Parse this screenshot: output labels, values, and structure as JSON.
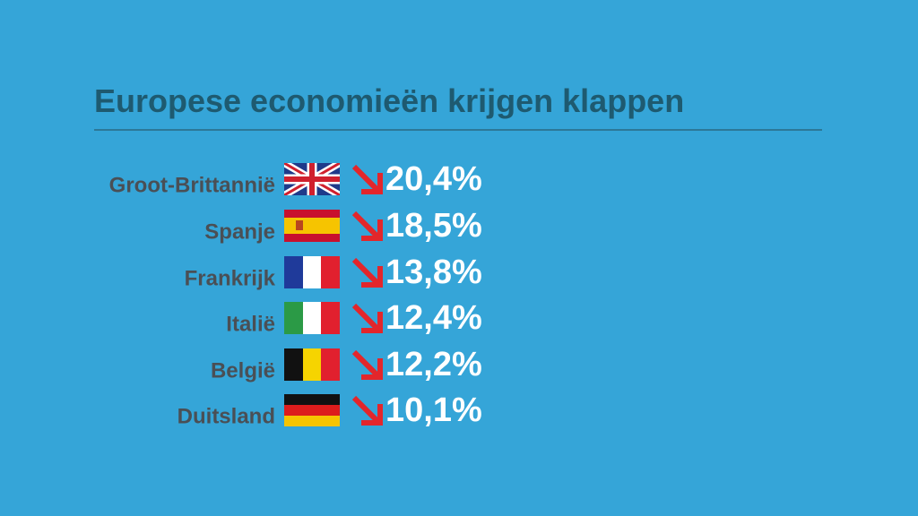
{
  "title": "Europese economieën krijgen klappen",
  "rows": [
    {
      "country": "Groot-Brittannië",
      "value": "20,4%"
    },
    {
      "country": "Spanje",
      "value": "18,5%"
    },
    {
      "country": "Frankrijk",
      "value": "13,8%"
    },
    {
      "country": "Italië",
      "value": "12,4%"
    },
    {
      "country": "België",
      "value": "12,2%"
    },
    {
      "country": "Duitsland",
      "value": "10,1%"
    }
  ]
}
